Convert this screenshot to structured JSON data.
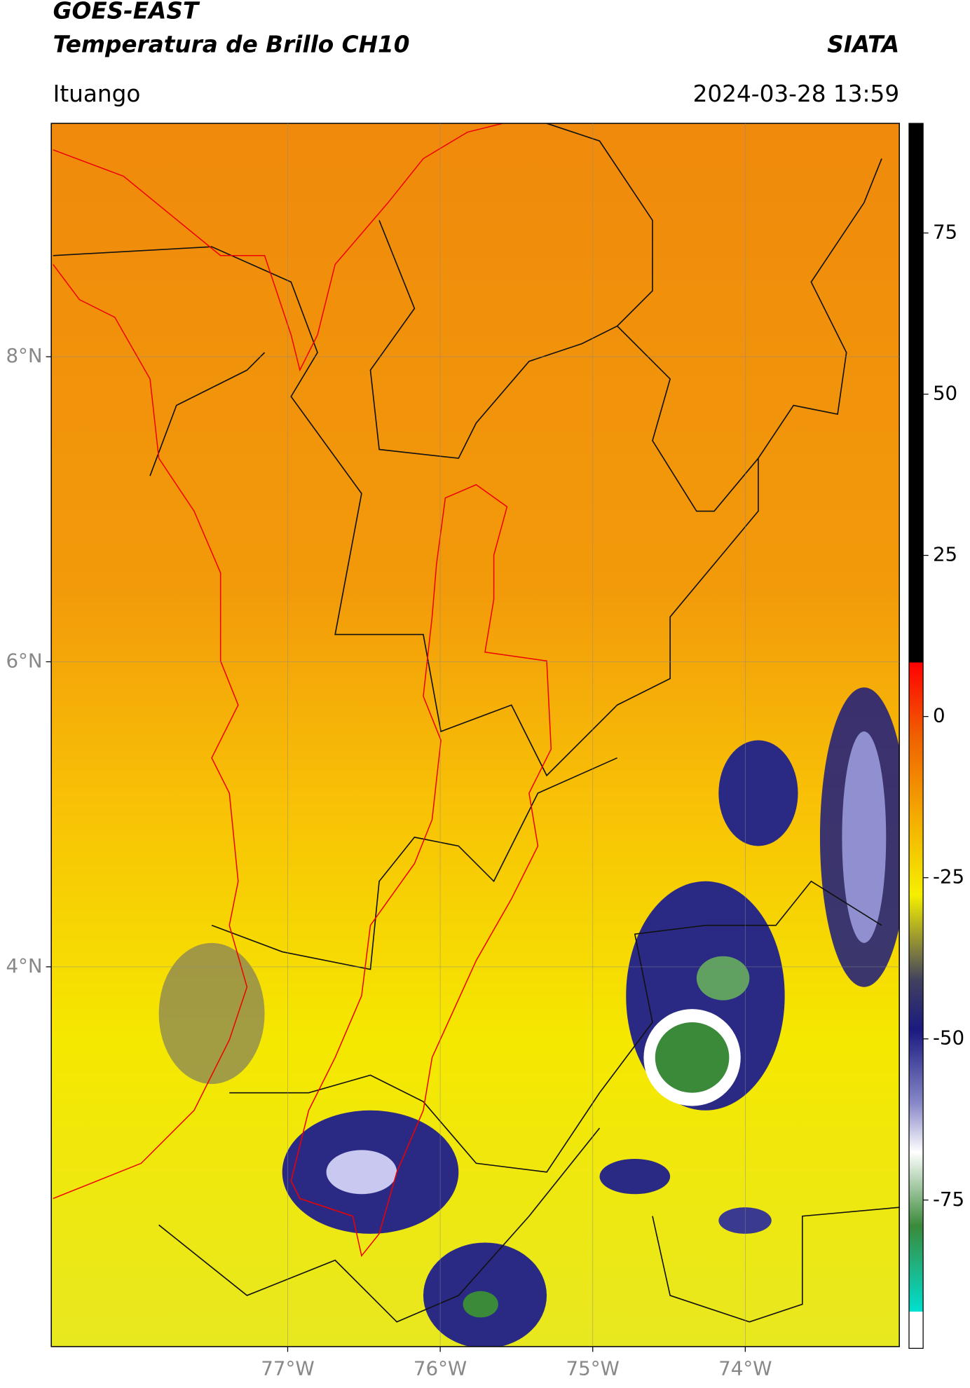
{
  "header": {
    "title": "GOES-EAST",
    "subtitle": "Temperatura de Brillo CH10",
    "source": "SIATA",
    "location": "Ituango",
    "datetime": "2024-03-28 13:59"
  },
  "map": {
    "xlim": [
      -78.55,
      -72.99
    ],
    "ylim": [
      1.51,
      9.53
    ],
    "grid": true,
    "xticks": [
      {
        "value": -77,
        "label": "77°W"
      },
      {
        "value": -76,
        "label": "76°W"
      },
      {
        "value": -75,
        "label": "75°W"
      },
      {
        "value": -74,
        "label": "74°W"
      }
    ],
    "yticks": [
      {
        "value": 8,
        "label": "8°N"
      },
      {
        "value": 6,
        "label": "6°N"
      },
      {
        "value": 4,
        "label": "4°N"
      }
    ]
  },
  "colorbar": {
    "lim": [
      -98,
      92
    ],
    "ticks": [
      75,
      50,
      25,
      0,
      -25,
      -50,
      -75
    ]
  }
}
